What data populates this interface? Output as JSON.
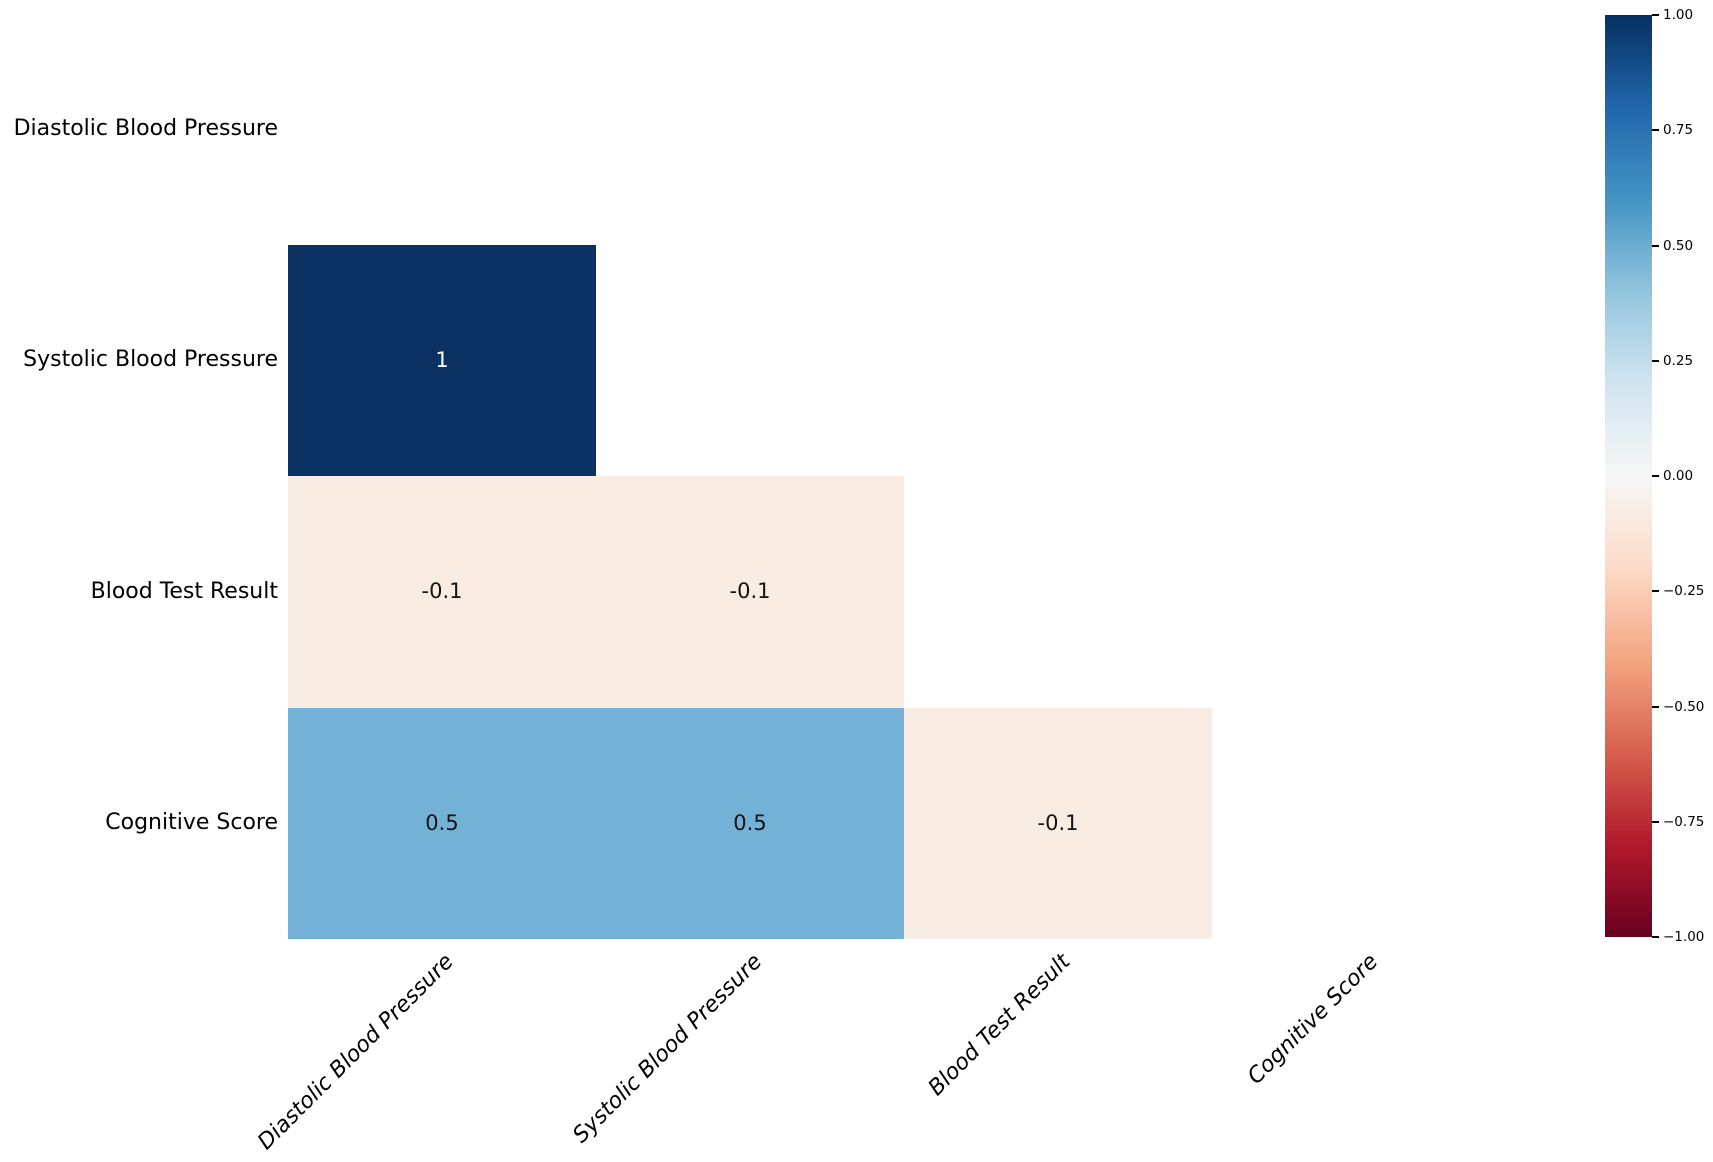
{
  "figure": {
    "background": "#ffffff",
    "text_color": "#000000"
  },
  "chart_data": {
    "type": "heatmap",
    "title": "",
    "xlabel": "",
    "ylabel": "",
    "x_labels": [
      "Diastolic Blood Pressure",
      "Systolic Blood Pressure",
      "Blood Test Result",
      "Cognitive Score"
    ],
    "y_labels": [
      "Diastolic Blood Pressure",
      "Systolic Blood Pressure",
      "Blood Test Result",
      "Cognitive Score"
    ],
    "mask": "upper-triangle-and-diagonal-hidden",
    "matrix": [
      [
        null,
        null,
        null,
        null
      ],
      [
        1,
        null,
        null,
        null
      ],
      [
        -0.1,
        -0.1,
        null,
        null
      ],
      [
        0.5,
        0.5,
        -0.1,
        null
      ]
    ],
    "annotations": [
      {
        "row": 1,
        "col": 0,
        "value": 1,
        "label": "1",
        "cell_color": "#0a3161",
        "text_color": "#ffffff"
      },
      {
        "row": 2,
        "col": 0,
        "value": -0.1,
        "label": "-0.1",
        "cell_color": "#f8ece3",
        "text_color": "#141414"
      },
      {
        "row": 2,
        "col": 1,
        "value": -0.1,
        "label": "-0.1",
        "cell_color": "#f8ece3",
        "text_color": "#141414"
      },
      {
        "row": 3,
        "col": 0,
        "value": 0.5,
        "label": "0.5",
        "cell_color": "#73b1d6",
        "text_color": "#141414"
      },
      {
        "row": 3,
        "col": 1,
        "value": 0.5,
        "label": "0.5",
        "cell_color": "#73b1d6",
        "text_color": "#141414"
      },
      {
        "row": 3,
        "col": 2,
        "value": -0.1,
        "label": "-0.1",
        "cell_color": "#f8ece3",
        "text_color": "#141414"
      }
    ],
    "colormap": "RdBu",
    "vmin": -1,
    "vmax": 1,
    "legend_position": "right-colorbar",
    "grid": false,
    "colorbar": {
      "ticks": [
        {
          "value": 1.0,
          "label": "1.00"
        },
        {
          "value": 0.75,
          "label": "0.75"
        },
        {
          "value": 0.5,
          "label": "0.50"
        },
        {
          "value": 0.25,
          "label": "0.25"
        },
        {
          "value": 0.0,
          "label": "0.00"
        },
        {
          "value": -0.25,
          "label": "−0.25"
        },
        {
          "value": -0.5,
          "label": "−0.50"
        },
        {
          "value": -0.75,
          "label": "−0.75"
        },
        {
          "value": -1.0,
          "label": "−1.00"
        }
      ],
      "gradient_top_to_bottom": [
        "#053061",
        "#2166ac",
        "#4393c3",
        "#92c5de",
        "#d1e5f0",
        "#f7f7f7",
        "#fddbc7",
        "#f4a582",
        "#d6604d",
        "#b2182b",
        "#67001f"
      ]
    }
  }
}
